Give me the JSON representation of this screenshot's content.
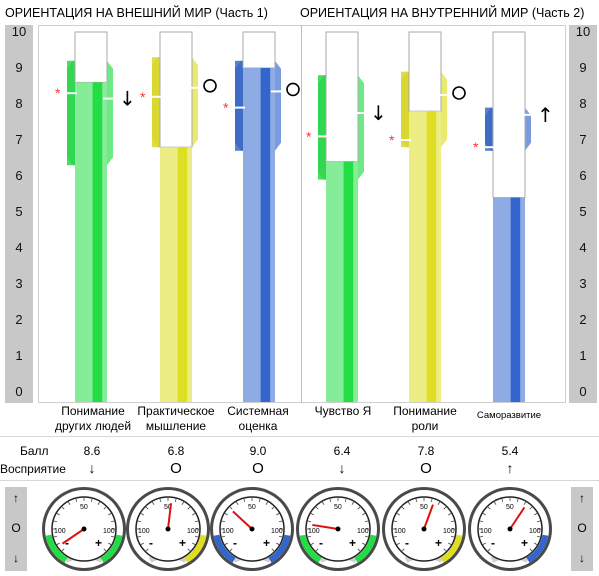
{
  "headers": {
    "part1": "ОРИЕНТАЦИЯ НА ВНЕШНИЙ МИР (Часть 1)",
    "part2": "ОРИЕНТАЦИЯ НА ВНУТРЕННИЙ МИР (Часть 2)"
  },
  "chart_data": {
    "type": "bar",
    "ylim": [
      0,
      10
    ],
    "yticks": [
      "0",
      "1",
      "2",
      "3",
      "4",
      "5",
      "6",
      "7",
      "8",
      "9",
      "10"
    ],
    "categories": [
      "Понимание других людей",
      "Практическое мышление",
      "Системная оценка",
      "Чувство Я",
      "Понимание роли",
      "Саморазвитие"
    ],
    "values": [
      8.6,
      6.8,
      9.0,
      6.4,
      7.8,
      5.4
    ],
    "star_marks": [
      8.3,
      8.2,
      7.9,
      7.1,
      7.0,
      6.8
    ],
    "target_band": [
      [
        6.3,
        9.2
      ],
      [
        6.8,
        9.3
      ],
      [
        6.7,
        9.2
      ],
      [
        5.9,
        8.8
      ],
      [
        6.8,
        8.9
      ],
      [
        6.7,
        7.9
      ]
    ],
    "colors": [
      "#22dd44",
      "#dede22",
      "#3366cc",
      "#22dd44",
      "#dede22",
      "#3366cc"
    ]
  },
  "captions": [
    [
      "Понимание",
      "других людей"
    ],
    [
      "Практическое",
      "мышление"
    ],
    [
      "Системная",
      "оценка"
    ],
    [
      "Чувство Я"
    ],
    [
      "Понимание",
      "роли"
    ],
    [
      "Саморазвитие"
    ]
  ],
  "row_labels": {
    "score": "Балл",
    "perception": "Восприятие"
  },
  "scores": [
    "8.6",
    "6.8",
    "9.0",
    "6.4",
    "7.8",
    "5.4"
  ],
  "perception": [
    "↓",
    "O",
    "O",
    "↓",
    "O",
    "↑"
  ],
  "markers": [
    "↓",
    "O",
    "O",
    "↓",
    "O",
    "↑"
  ],
  "side_buttons": {
    "up": "↑",
    "mid": "O",
    "down": "↓"
  },
  "gauges": {
    "top_label": "50",
    "left_label": "100",
    "right_label": "100",
    "minus": "-",
    "plus": "+",
    "needle_values": [
      -92,
      5,
      -35,
      -60,
      15,
      25
    ]
  }
}
